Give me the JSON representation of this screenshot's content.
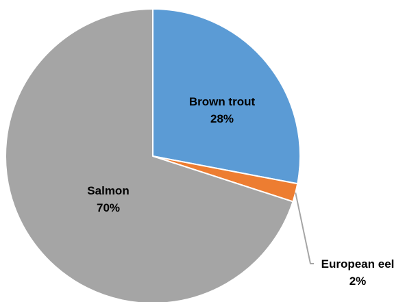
{
  "chart_data": {
    "type": "pie",
    "title": "",
    "slices": [
      {
        "label": "Brown trout",
        "value": 28,
        "display": "28%",
        "color": "#5B9BD5"
      },
      {
        "label": "European eel",
        "value": 2,
        "display": "2%",
        "color": "#ED7D31"
      },
      {
        "label": "Salmon",
        "value": 70,
        "display": "70%",
        "color": "#A5A5A5"
      }
    ],
    "start_angle": "12 o'clock",
    "direction": "clockwise",
    "legend": "none",
    "data_labels": "category name and percentage"
  }
}
